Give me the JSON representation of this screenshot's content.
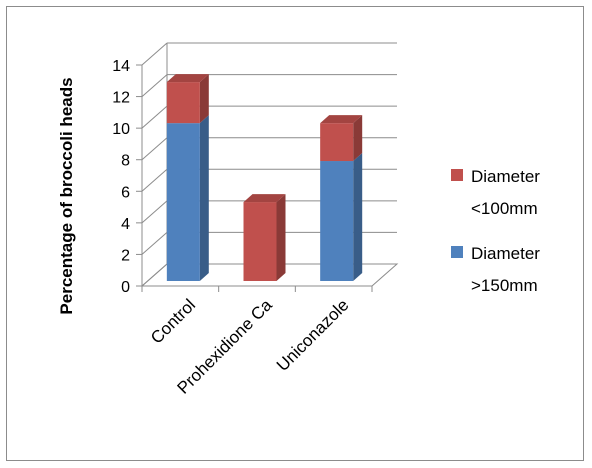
{
  "chart_data": {
    "type": "bar",
    "stacked": true,
    "view": "3d",
    "categories": [
      "Control",
      "Prohexidione Ca",
      "Uniconazole"
    ],
    "ylabel": "Percentage of broccoli heads",
    "ylim": [
      0,
      14
    ],
    "yticks": [
      "0",
      "2",
      "4",
      "6",
      "8",
      "10",
      "12",
      "14"
    ],
    "grid": true,
    "legend_position": "right",
    "series": [
      {
        "name": "Diameter >150mm",
        "legend_lines": [
          "Diameter",
          ">150mm"
        ],
        "color": "#4f81bd",
        "values": [
          10,
          0,
          7.6
        ]
      },
      {
        "name": "Diameter <100mm",
        "legend_lines": [
          "Diameter",
          "<100mm"
        ],
        "color": "#c0504d",
        "values": [
          2.6,
          5,
          2.4
        ]
      }
    ]
  }
}
